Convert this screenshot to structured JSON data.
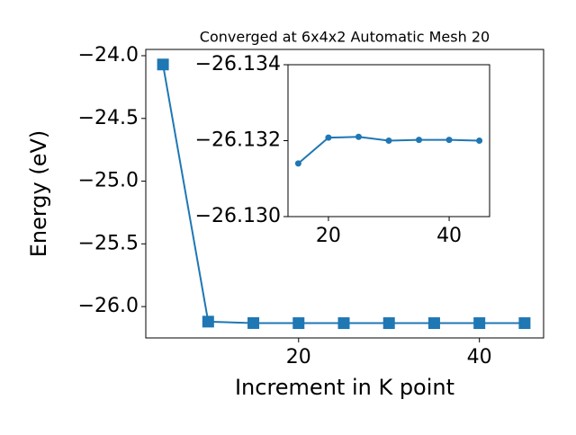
{
  "chart_data": [
    {
      "type": "line",
      "title": "Converged at 6x4x2 Automatic Mesh 20",
      "xlabel": "Increment in K point",
      "ylabel": "Energy (eV)",
      "x": [
        5,
        10,
        15,
        20,
        25,
        30,
        35,
        40,
        45
      ],
      "series": [
        {
          "color": "#1f77b4",
          "marker": "square",
          "values": [
            -24.07,
            -26.12,
            -26.1314,
            -26.1321,
            -26.1321,
            -26.132,
            -26.132,
            -26.132,
            -26.132
          ]
        }
      ],
      "xlim": [
        3.1,
        47.1
      ],
      "ylim": [
        -26.25,
        -23.95
      ],
      "xticks": [
        20,
        40
      ],
      "yticks": [
        {
          "value": -24.0,
          "label": "−24.0"
        },
        {
          "value": -24.5,
          "label": "−24.5"
        },
        {
          "value": -25.0,
          "label": "−25.0"
        },
        {
          "value": -25.5,
          "label": "−25.5"
        },
        {
          "value": -26.0,
          "label": "−26.0"
        }
      ]
    },
    {
      "type": "line",
      "x": [
        15,
        20,
        25,
        30,
        35,
        40,
        45
      ],
      "series": [
        {
          "color": "#1f77b4",
          "marker": "circle",
          "values": [
            -26.1314,
            -26.13208,
            -26.1321,
            -26.132,
            -26.13202,
            -26.13202,
            -26.132
          ]
        }
      ],
      "xlim": [
        13.3,
        46.7
      ],
      "ylim": [
        -26.13,
        -26.134
      ],
      "xticks": [
        20,
        40
      ],
      "yticks": [
        {
          "value": -26.134,
          "label": "−26.134"
        },
        {
          "value": -26.132,
          "label": "−26.132"
        },
        {
          "value": -26.13,
          "label": "−26.130"
        }
      ]
    }
  ]
}
